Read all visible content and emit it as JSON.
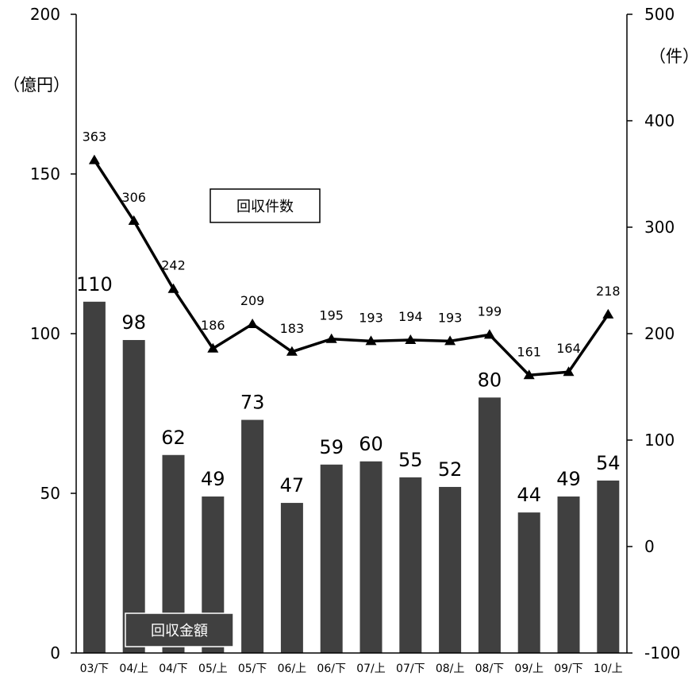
{
  "chart_data": {
    "type": "bar",
    "categories": [
      "03/下",
      "04/上",
      "04/下",
      "05/上",
      "05/下",
      "06/上",
      "06/下",
      "07/上",
      "07/下",
      "08/上",
      "08/下",
      "09/上",
      "09/下",
      "10/上"
    ],
    "series": [
      {
        "name": "回収金額",
        "type": "bar",
        "axis": "left",
        "color": "#404040",
        "values": [
          110,
          98,
          62,
          49,
          73,
          47,
          59,
          60,
          55,
          52,
          80,
          44,
          49,
          54
        ]
      },
      {
        "name": "回収件数",
        "type": "line",
        "axis": "right",
        "color": "#000000",
        "marker": "triangle",
        "values": [
          363,
          306,
          242,
          186,
          209,
          183,
          195,
          193,
          194,
          193,
          199,
          161,
          164,
          218
        ]
      }
    ],
    "left_axis": {
      "label": "（億円）",
      "min": 0,
      "max": 200,
      "ticks": [
        0,
        50,
        100,
        150,
        200
      ]
    },
    "right_axis": {
      "label": "（件）",
      "min": -100,
      "max": 500,
      "ticks": [
        -100,
        0,
        100,
        200,
        300,
        400,
        500
      ]
    },
    "legend": {
      "bar_label": "回収金額",
      "line_label": "回収件数",
      "placement": "inside"
    },
    "grid": false
  }
}
